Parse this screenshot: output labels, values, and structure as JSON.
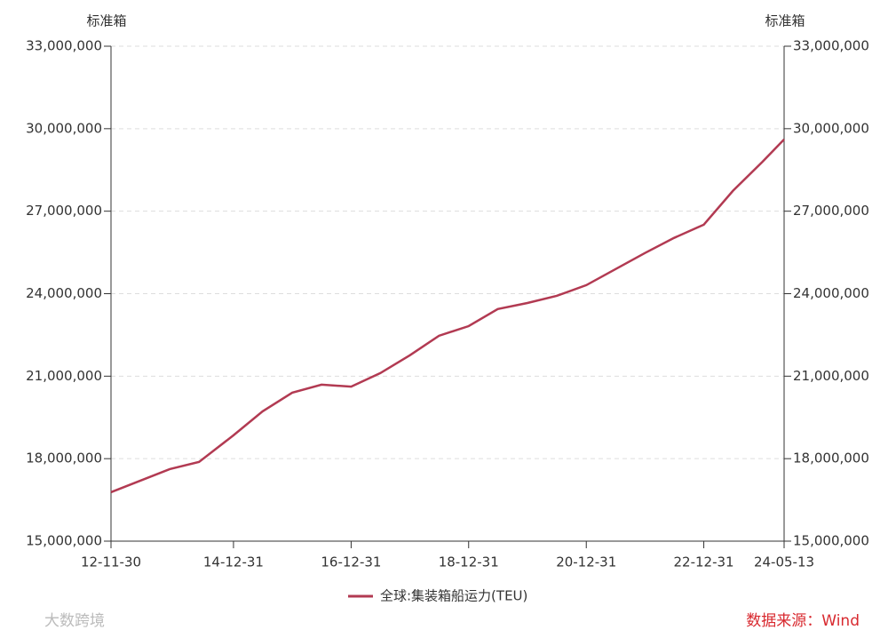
{
  "chart_data": {
    "type": "line",
    "y_label": "标准箱",
    "y2_label": "标准箱",
    "x": [
      "12-11-30",
      "13-11-30",
      "14-05-31",
      "14-12-31",
      "15-06-30",
      "15-12-31",
      "16-06-30",
      "16-12-31",
      "17-06-30",
      "17-12-31",
      "18-06-30",
      "18-12-31",
      "19-06-30",
      "19-12-31",
      "20-06-30",
      "20-12-31",
      "21-06-30",
      "21-12-31",
      "22-06-30",
      "22-12-31",
      "23-06-30",
      "23-12-31",
      "24-05-13"
    ],
    "series": [
      {
        "name": "全球:集装箱船运力(TEU)",
        "color": "#b23a52",
        "values": [
          16780000,
          17620000,
          17880000,
          18850000,
          19720000,
          20400000,
          20690000,
          20620000,
          21110000,
          21760000,
          22470000,
          22820000,
          23440000,
          23660000,
          23920000,
          24310000,
          24890000,
          25480000,
          26030000,
          26510000,
          27740000,
          28800000,
          29610000
        ]
      }
    ],
    "xlim": [
      "12-11-30",
      "24-05-13"
    ],
    "xticks": [
      "12-11-30",
      "14-12-31",
      "16-12-31",
      "18-12-31",
      "20-12-31",
      "22-12-31",
      "24-05-13"
    ],
    "ylim": [
      15000000,
      33000000
    ],
    "yticks": [
      {
        "value": 15000000,
        "label": "15,000,000"
      },
      {
        "value": 18000000,
        "label": "18,000,000"
      },
      {
        "value": 21000000,
        "label": "21,000,000"
      },
      {
        "value": 24000000,
        "label": "24,000,000"
      },
      {
        "value": 27000000,
        "label": "27,000,000"
      },
      {
        "value": 30000000,
        "label": "30,000,000"
      },
      {
        "value": 33000000,
        "label": "33,000,000"
      }
    ],
    "y2lim": [
      15000000,
      33000000
    ],
    "y2ticks": [
      {
        "value": 15000000,
        "label": "15,000,000"
      },
      {
        "value": 18000000,
        "label": "18,000,000"
      },
      {
        "value": 21000000,
        "label": "21,000,000"
      },
      {
        "value": 24000000,
        "label": "24,000,000"
      },
      {
        "value": 27000000,
        "label": "27,000,000"
      },
      {
        "value": 30000000,
        "label": "30,000,000"
      },
      {
        "value": 33000000,
        "label": "33,000,000"
      }
    ],
    "grid": true,
    "legend": "bottom",
    "source": "数据来源：Wind",
    "watermark": "大数跨境"
  }
}
